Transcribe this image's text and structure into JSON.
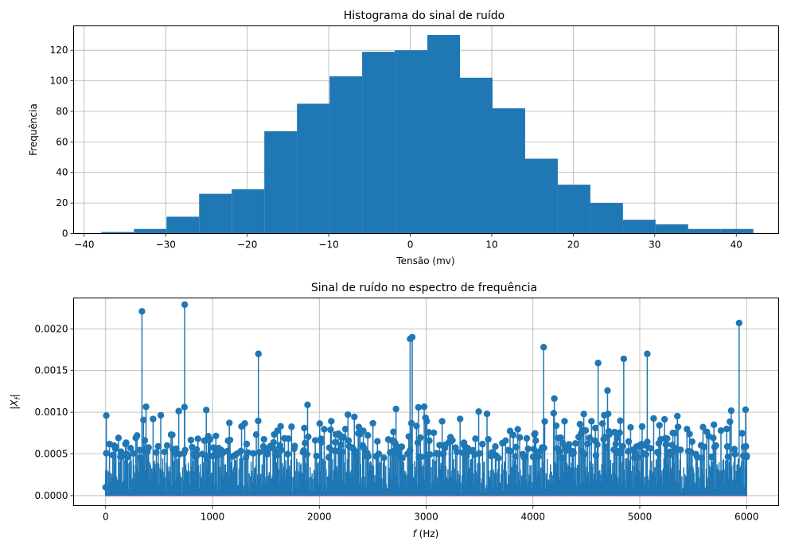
{
  "chart_data": [
    {
      "type": "bar",
      "subtype": "histogram",
      "title": "Histograma do sinal de ruído",
      "xlabel": "Tensão (mv)",
      "ylabel": "Frequência",
      "xlim": [
        -41.3,
        45.2
      ],
      "ylim": [
        0,
        136
      ],
      "xticks": [
        -40,
        -30,
        -20,
        -10,
        0,
        10,
        20,
        30,
        40
      ],
      "xtick_labels": [
        "−40",
        "−30",
        "−20",
        "−10",
        "0",
        "10",
        "20",
        "30",
        "40"
      ],
      "yticks": [
        0,
        20,
        40,
        60,
        80,
        100,
        120
      ],
      "yticks_labels": [
        "0",
        "20",
        "40",
        "60",
        "80",
        "100",
        "120"
      ],
      "grid": true,
      "color": "#1f77b4",
      "bins": [
        {
          "x0": -37.9,
          "x1": -33.9,
          "count": 1
        },
        {
          "x0": -33.9,
          "x1": -29.9,
          "count": 3
        },
        {
          "x0": -29.9,
          "x1": -25.9,
          "count": 11
        },
        {
          "x0": -25.9,
          "x1": -21.9,
          "count": 26
        },
        {
          "x0": -21.9,
          "x1": -17.9,
          "count": 29
        },
        {
          "x0": -17.9,
          "x1": -13.9,
          "count": 67
        },
        {
          "x0": -13.9,
          "x1": -9.9,
          "count": 85
        },
        {
          "x0": -9.9,
          "x1": -5.9,
          "count": 103
        },
        {
          "x0": -5.9,
          "x1": -1.9,
          "count": 119
        },
        {
          "x0": -1.9,
          "x1": 2.1,
          "count": 120
        },
        {
          "x0": 2.1,
          "x1": 6.1,
          "count": 130
        },
        {
          "x0": 6.1,
          "x1": 10.1,
          "count": 102
        },
        {
          "x0": 10.1,
          "x1": 14.1,
          "count": 82
        },
        {
          "x0": 14.1,
          "x1": 18.1,
          "count": 49
        },
        {
          "x0": 18.1,
          "x1": 22.1,
          "count": 32
        },
        {
          "x0": 22.1,
          "x1": 26.1,
          "count": 20
        },
        {
          "x0": 26.1,
          "x1": 30.1,
          "count": 9
        },
        {
          "x0": 30.1,
          "x1": 34.1,
          "count": 6
        },
        {
          "x0": 34.1,
          "x1": 38.1,
          "count": 3
        },
        {
          "x0": 38.1,
          "x1": 42.1,
          "count": 3
        }
      ]
    },
    {
      "type": "stem",
      "title": "Sinal de ruído no espectro de frequência",
      "xlabel_italic": "f",
      "xlabel_rest": " (Hz)",
      "ylabel": "|X_f|",
      "xlim": [
        -300,
        6300
      ],
      "ylim": [
        -0.00012,
        0.00237
      ],
      "xticks": [
        0,
        1000,
        2000,
        3000,
        4000,
        5000,
        6000
      ],
      "xtick_labels": [
        "0",
        "1000",
        "2000",
        "3000",
        "4000",
        "5000",
        "6000"
      ],
      "yticks": [
        0.0,
        0.0005,
        0.001,
        0.0015,
        0.002
      ],
      "ytick_labels": [
        "0.0000",
        "0.0005",
        "0.0010",
        "0.0015",
        "0.0020"
      ],
      "grid": true,
      "color": "#1f77b4",
      "x_step_hz": 6,
      "x_max_hz": 6000,
      "notable_peaks": [
        {
          "x": 0,
          "y": 0.0001
        },
        {
          "x": 6,
          "y": 0.00096
        },
        {
          "x": 340,
          "y": 0.00221
        },
        {
          "x": 740,
          "y": 0.00229
        },
        {
          "x": 1430,
          "y": 0.0017
        },
        {
          "x": 2850,
          "y": 0.00188
        },
        {
          "x": 2870,
          "y": 0.0019
        },
        {
          "x": 4100,
          "y": 0.00178
        },
        {
          "x": 4610,
          "y": 0.00159
        },
        {
          "x": 4850,
          "y": 0.00164
        },
        {
          "x": 5070,
          "y": 0.0017
        },
        {
          "x": 5930,
          "y": 0.00207
        },
        {
          "x": 5990,
          "y": 0.00103
        },
        {
          "x": 6000,
          "y": 0.00048
        }
      ]
    }
  ]
}
